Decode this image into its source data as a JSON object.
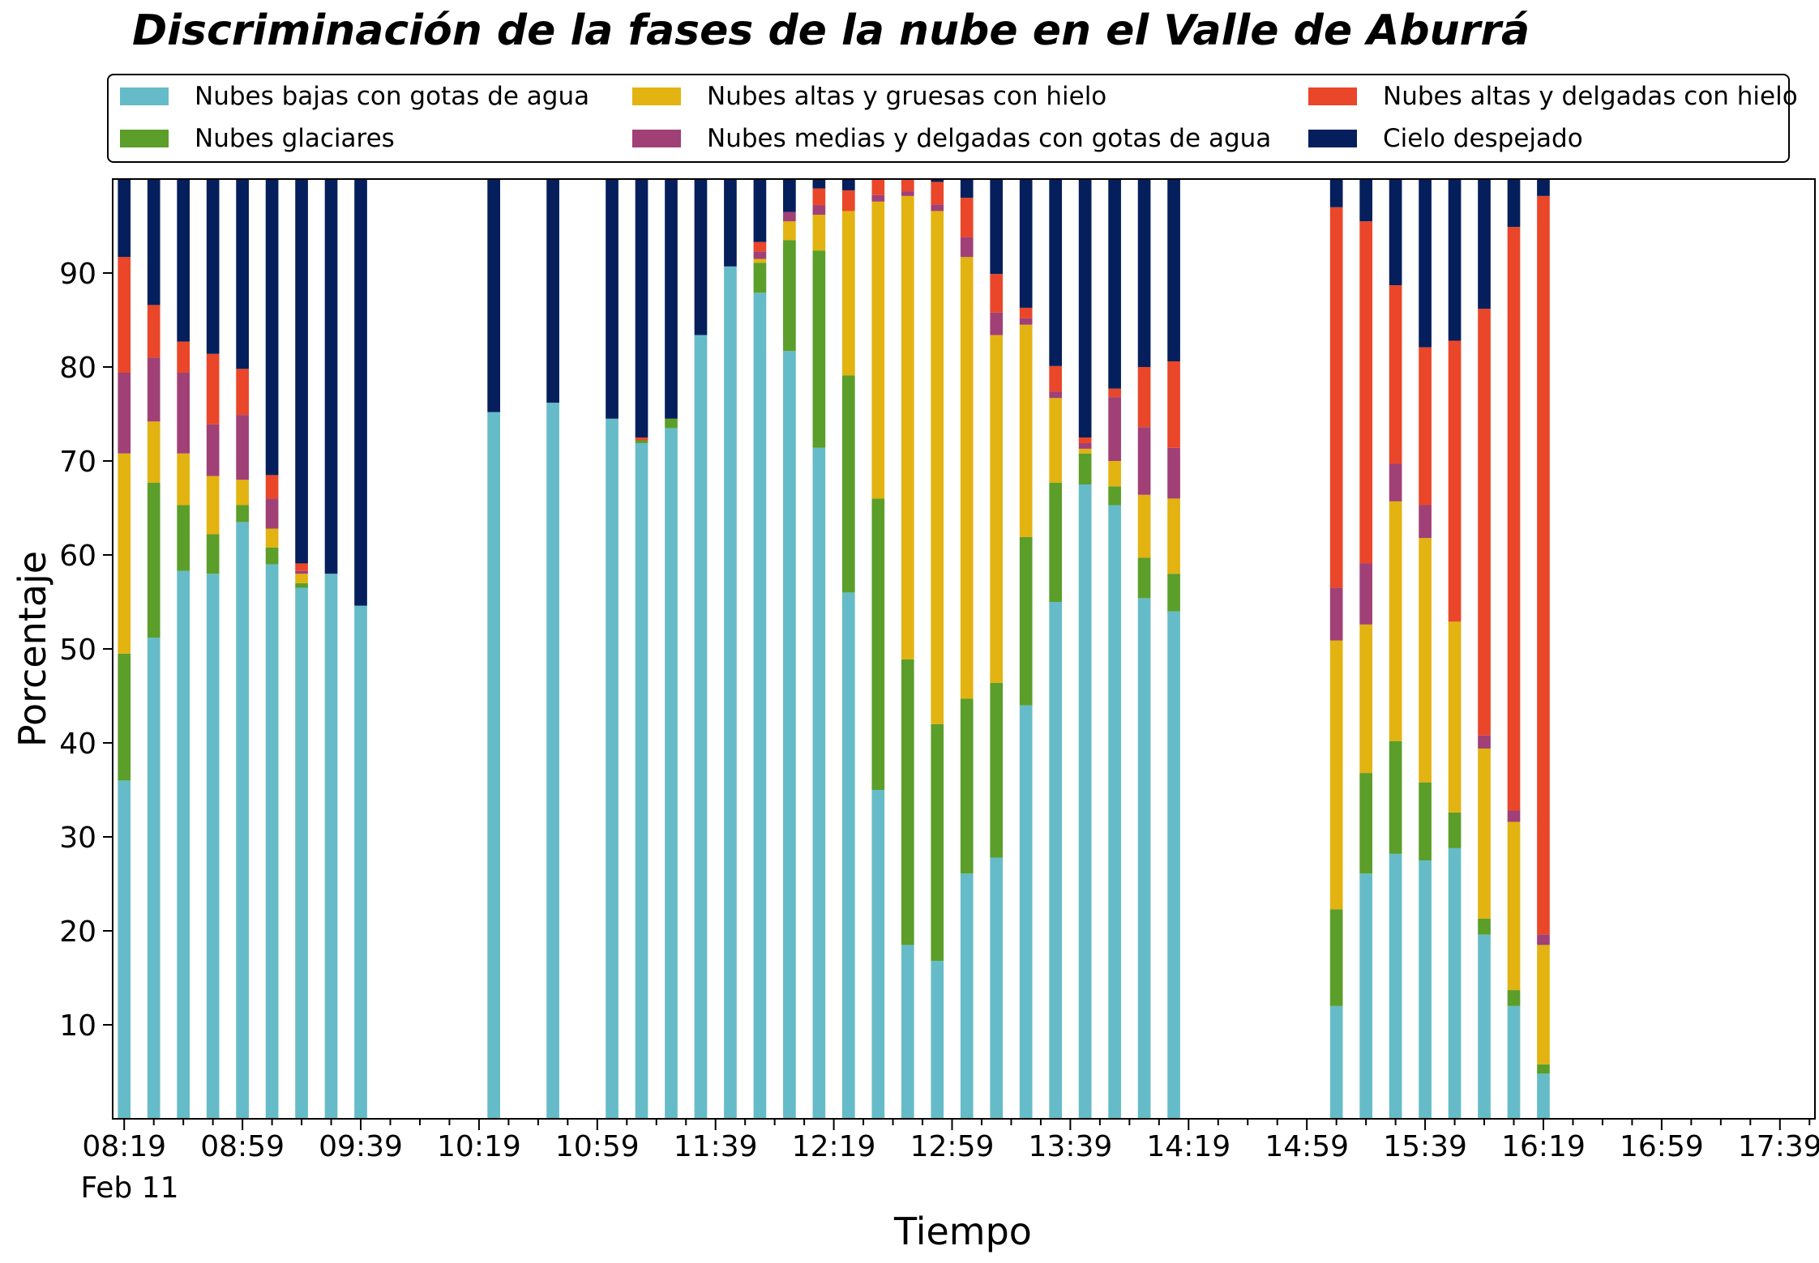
{
  "chart_data": {
    "type": "bar",
    "stacked": true,
    "title": "Discriminación de la fases de la nube en el Valle de Aburrá",
    "xlabel": "Tiempo",
    "ylabel": "Porcentaje",
    "ylim": [
      0,
      100
    ],
    "yticks": [
      10,
      20,
      30,
      40,
      50,
      60,
      70,
      80,
      90
    ],
    "x_date_label": "Feb 11",
    "x_tick_labels": [
      "08:19",
      "08:59",
      "09:39",
      "10:19",
      "10:59",
      "11:39",
      "12:19",
      "12:59",
      "13:39",
      "14:19",
      "14:59",
      "15:39",
      "16:19",
      "16:59",
      "17:39"
    ],
    "categories": [
      "08:19",
      "08:24",
      "08:29",
      "08:34",
      "08:39",
      "08:44",
      "08:49",
      "08:54",
      "08:59",
      "09:04",
      "09:09",
      "09:14",
      "09:19",
      "09:24",
      "09:29",
      "09:34",
      "09:39",
      "09:44",
      "09:49",
      "09:54",
      "09:59",
      "10:04",
      "10:09",
      "10:14",
      "10:19",
      "10:24",
      "10:29",
      "10:34",
      "10:39",
      "10:44",
      "10:49",
      "10:54",
      "10:59",
      "11:04",
      "11:09",
      "11:14",
      "11:19",
      "11:24",
      "11:29",
      "11:34",
      "11:39",
      "11:44",
      "11:49",
      "11:54",
      "11:59",
      "12:04",
      "12:09",
      "12:14",
      "12:19",
      "12:24",
      "12:29",
      "12:34",
      "12:39",
      "12:44",
      "12:49",
      "12:54",
      "12:59",
      "13:04",
      "13:09",
      "13:14",
      "13:19",
      "13:24",
      "13:29",
      "13:34",
      "13:39",
      "13:44",
      "13:49",
      "13:54",
      "13:59",
      "14:04",
      "14:09",
      "14:14",
      "14:19",
      "14:24",
      "14:29",
      "14:34",
      "14:39",
      "14:44",
      "14:49",
      "14:54",
      "14:59",
      "15:04",
      "15:09",
      "15:14",
      "15:19",
      "15:24",
      "15:29",
      "15:34",
      "15:39",
      "15:44",
      "15:49",
      "15:54",
      "15:59",
      "16:04",
      "16:09",
      "16:14",
      "16:19",
      "16:24",
      "16:29",
      "16:34",
      "16:39",
      "16:44",
      "16:49",
      "16:54",
      "16:59",
      "17:04",
      "17:09",
      "17:14",
      "17:19",
      "17:24",
      "17:29",
      "17:34",
      "17:39",
      "17:44",
      "17:49"
    ],
    "bars": [
      {
        "x": "08:19",
        "values": [
          36.0,
          13.5,
          21.3,
          8.6,
          12.3,
          8.3
        ]
      },
      {
        "x": "08:29",
        "values": [
          51.2,
          16.5,
          6.5,
          6.8,
          5.6,
          13.4
        ]
      },
      {
        "x": "08:39",
        "values": [
          58.3,
          7.0,
          5.5,
          8.6,
          3.3,
          17.3
        ]
      },
      {
        "x": "08:49",
        "values": [
          58.0,
          4.2,
          6.2,
          5.5,
          7.5,
          18.6
        ]
      },
      {
        "x": "08:59",
        "values": [
          63.5,
          1.8,
          2.7,
          6.9,
          4.9,
          20.2
        ]
      },
      {
        "x": "09:09",
        "values": [
          59.0,
          1.8,
          2.0,
          3.2,
          2.5,
          31.5
        ]
      },
      {
        "x": "09:19",
        "values": [
          56.5,
          0.5,
          1.0,
          0.3,
          0.8,
          40.9
        ]
      },
      {
        "x": "09:29",
        "values": [
          58.0,
          0,
          0,
          0,
          0,
          42.0
        ]
      },
      {
        "x": "09:39",
        "values": [
          54.6,
          0,
          0,
          0,
          0,
          45.4
        ]
      },
      {
        "x": "10:24",
        "values": [
          75.2,
          0,
          0,
          0,
          0,
          24.8
        ]
      },
      {
        "x": "10:44",
        "values": [
          76.2,
          0,
          0,
          0,
          0,
          23.8
        ]
      },
      {
        "x": "11:04",
        "values": [
          74.5,
          0,
          0,
          0,
          0,
          25.5
        ]
      },
      {
        "x": "11:14",
        "values": [
          71.9,
          0.3,
          0,
          0,
          0.3,
          27.5
        ]
      },
      {
        "x": "11:24",
        "values": [
          73.5,
          1.0,
          0,
          0,
          0,
          25.5
        ]
      },
      {
        "x": "11:34",
        "values": [
          83.4,
          0,
          0,
          0,
          0,
          16.6
        ]
      },
      {
        "x": "11:44",
        "values": [
          90.7,
          0,
          0,
          0,
          0,
          9.3
        ]
      },
      {
        "x": "11:54",
        "values": [
          87.9,
          3.2,
          0.4,
          0.8,
          1.0,
          6.7
        ]
      },
      {
        "x": "12:04",
        "values": [
          81.7,
          11.8,
          2.0,
          1.0,
          0,
          3.5
        ]
      },
      {
        "x": "12:14",
        "values": [
          71.4,
          21.0,
          3.8,
          1.0,
          1.8,
          1.0
        ]
      },
      {
        "x": "12:24",
        "values": [
          56.0,
          23.1,
          17.5,
          0,
          2.2,
          1.2
        ]
      },
      {
        "x": "12:34",
        "values": [
          35.0,
          31.0,
          31.6,
          0.7,
          1.7,
          0
        ]
      },
      {
        "x": "12:44",
        "values": [
          18.5,
          30.4,
          49.3,
          0.5,
          1.3,
          0
        ]
      },
      {
        "x": "12:54",
        "values": [
          16.8,
          25.2,
          54.6,
          0.7,
          2.4,
          0.3
        ]
      },
      {
        "x": "13:04",
        "values": [
          26.1,
          18.6,
          47.0,
          2.1,
          4.2,
          2.0
        ]
      },
      {
        "x": "13:14",
        "values": [
          27.8,
          18.6,
          37.0,
          2.4,
          4.1,
          10.1
        ]
      },
      {
        "x": "13:24",
        "values": [
          44.0,
          17.9,
          22.6,
          0.7,
          1.1,
          13.7
        ]
      },
      {
        "x": "13:34",
        "values": [
          55.0,
          12.7,
          9.0,
          0.7,
          2.7,
          19.9
        ]
      },
      {
        "x": "13:44",
        "values": [
          67.5,
          3.3,
          0.5,
          0.6,
          0.6,
          27.5
        ]
      },
      {
        "x": "13:54",
        "values": [
          65.3,
          2.0,
          2.7,
          6.8,
          0.9,
          22.3
        ]
      },
      {
        "x": "14:04",
        "values": [
          55.4,
          4.3,
          6.7,
          7.2,
          6.4,
          20.0
        ]
      },
      {
        "x": "14:14",
        "values": [
          54.0,
          4.0,
          8.0,
          5.4,
          9.2,
          19.4
        ]
      },
      {
        "x": "15:09",
        "values": [
          12.0,
          10.3,
          28.6,
          5.6,
          40.5,
          3.0
        ]
      },
      {
        "x": "15:19",
        "values": [
          26.1,
          10.7,
          15.8,
          6.5,
          36.4,
          4.5
        ]
      },
      {
        "x": "15:29",
        "values": [
          28.2,
          12.0,
          25.5,
          4.0,
          19.0,
          11.3
        ]
      },
      {
        "x": "15:39",
        "values": [
          27.5,
          8.3,
          26.0,
          3.5,
          16.8,
          17.9
        ]
      },
      {
        "x": "15:49",
        "values": [
          28.8,
          3.8,
          20.3,
          0,
          29.9,
          17.2
        ]
      },
      {
        "x": "15:59",
        "values": [
          19.6,
          1.7,
          18.1,
          1.4,
          45.4,
          13.8
        ]
      },
      {
        "x": "16:09",
        "values": [
          12.0,
          1.7,
          17.9,
          1.2,
          62.1,
          5.1
        ]
      },
      {
        "x": "16:19",
        "values": [
          4.8,
          1.0,
          12.7,
          1.1,
          78.6,
          1.8
        ]
      }
    ],
    "series": [
      {
        "name": "Nubes bajas con gotas de agua",
        "color": "#65bcc8"
      },
      {
        "name": "Nubes glaciares",
        "color": "#5b9e2a"
      },
      {
        "name": "Nubes altas y gruesas con hielo",
        "color": "#e2b311"
      },
      {
        "name": "Nubes medias y delgadas con gotas de agua",
        "color": "#a04076"
      },
      {
        "name": "Nubes altas y delgadas con hielo",
        "color": "#ea4629"
      },
      {
        "name": "Cielo despejado",
        "color": "#051f5c"
      }
    ],
    "legend": {
      "position": "top",
      "columns": 3
    },
    "grid": false
  }
}
